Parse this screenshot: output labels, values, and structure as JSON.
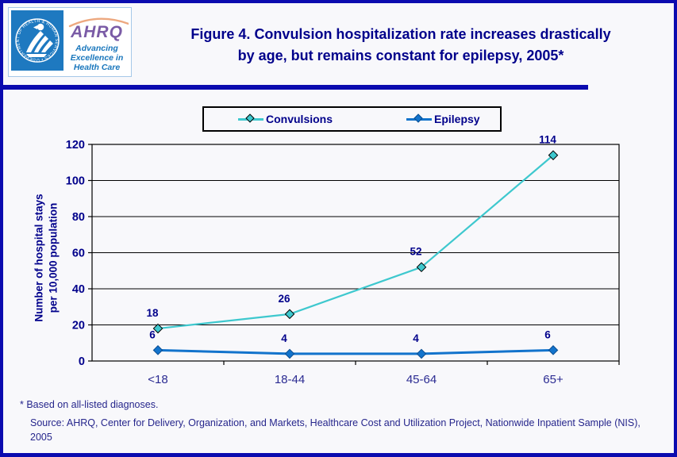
{
  "page": {
    "background": "#F8F8FB",
    "border_color": "#0B0BAF"
  },
  "header": {
    "logo": {
      "hhs_ring_text": "DEPARTMENT OF HEALTH & HUMAN SERVICES • USA",
      "ahrq_text": "AHRQ",
      "tagline_line1": "Advancing",
      "tagline_line2": "Excellence in",
      "tagline_line3": "Health Care"
    },
    "title_line1": "Figure 4. Convulsion hospitalization rate increases drastically",
    "title_line2": "by age, but remains constant for epilepsy, 2005*"
  },
  "legend": {
    "items": [
      {
        "label": "Convulsions",
        "color": "#3EC8CE",
        "marker_outline": "#000000"
      },
      {
        "label": "Epilepsy",
        "color": "#1273CC",
        "marker_outline": "#0B4E91"
      }
    ]
  },
  "chart_data": {
    "type": "line",
    "title": "Figure 4. Convulsion hospitalization rate increases drastically by age, but remains constant for epilepsy, 2005*",
    "categories": [
      "<18",
      "18-44",
      "45-64",
      "65+"
    ],
    "series": [
      {
        "name": "Convulsions",
        "values": [
          18,
          26,
          52,
          114
        ],
        "color": "#3EC8CE",
        "marker": "diamond",
        "marker_outline": "#000000",
        "line_width": 2.2
      },
      {
        "name": "Epilepsy",
        "values": [
          6,
          4,
          4,
          6
        ],
        "color": "#1273CC",
        "marker": "diamond",
        "marker_outline": "#0B4E91",
        "line_width": 3
      }
    ],
    "xlabel": "",
    "ylabel_line1": "Number of hospital stays",
    "ylabel_line2": "per 10,000 population",
    "ylim": [
      0,
      120
    ],
    "yticks": [
      0,
      20,
      40,
      60,
      80,
      100,
      120
    ],
    "grid": true,
    "legend_position": "top",
    "data_labels": true,
    "text_color": "#00008B"
  },
  "footer": {
    "note": "* Based on all-listed diagnoses.",
    "source": "Source: AHRQ, Center for Delivery, Organization, and Markets, Healthcare Cost and Utilization Project, Nationwide Inpatient Sample (NIS), 2005"
  }
}
